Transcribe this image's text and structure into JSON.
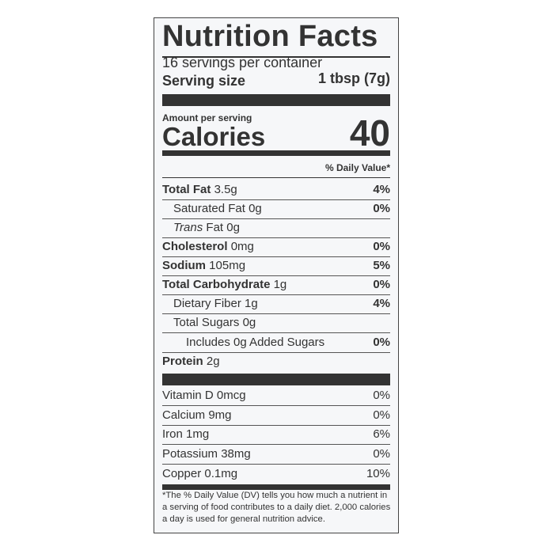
{
  "title": "Nutrition Facts",
  "servings_per_container": "16 servings per container",
  "serving_size_label": "Serving size",
  "serving_size_value": "1 tbsp (7g)",
  "amount_per_serving": "Amount per serving",
  "calories_label": "Calories",
  "calories_value": "40",
  "dv_header": "% Daily Value*",
  "nutrients": [
    {
      "name": "Total Fat",
      "amount": "3.5g",
      "dv": "4%"
    },
    {
      "name": "Saturated Fat",
      "amount": "0g",
      "dv": "0%"
    },
    {
      "name": "Trans",
      "name2": "Fat",
      "amount": "0g",
      "dv": ""
    },
    {
      "name": "Cholesterol",
      "amount": "0mg",
      "dv": "0%"
    },
    {
      "name": "Sodium",
      "amount": "105mg",
      "dv": "5%"
    },
    {
      "name": "Total Carbohydrate",
      "amount": "1g",
      "dv": "0%"
    },
    {
      "name": "Dietary Fiber",
      "amount": "1g",
      "dv": "4%"
    },
    {
      "name": "Total Sugars",
      "amount": "0g",
      "dv": ""
    },
    {
      "name": "Includes 0g Added Sugars",
      "amount": "",
      "dv": "0%"
    },
    {
      "name": "Protein",
      "amount": "2g",
      "dv": ""
    }
  ],
  "vitamins": [
    {
      "text": "Vitamin D 0mcg",
      "dv": "0%"
    },
    {
      "text": "Calcium 9mg",
      "dv": "0%"
    },
    {
      "text": "Iron 1mg",
      "dv": "6%"
    },
    {
      "text": "Potassium 38mg",
      "dv": "0%"
    },
    {
      "text": "Copper 0.1mg",
      "dv": "10%"
    }
  ],
  "footnote": "*The % Daily Value (DV) tells you how much a nutrient in a serving of food contributes to a daily diet. 2,000 calories a day is used for general nutrition advice."
}
